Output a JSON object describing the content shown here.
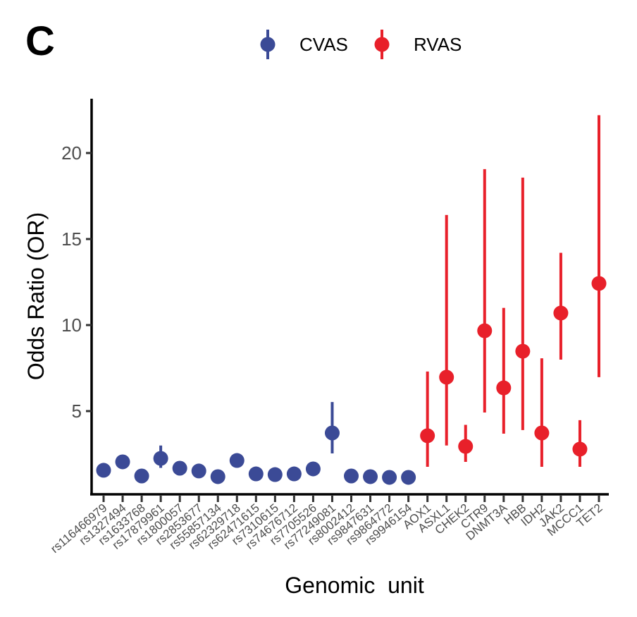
{
  "panel_label": "C",
  "chart_data": {
    "type": "scatter",
    "subtype": "point-range",
    "xlabel": "Genomic  unit",
    "ylabel": "Odds Ratio (OR)",
    "ylim": [
      0,
      23
    ],
    "yticks": [
      5,
      10,
      15,
      20
    ],
    "grid": false,
    "legend_position": "top",
    "categories": [
      "rs116466979",
      "rs1327494",
      "rs1633768",
      "rs17879961",
      "rs1800057",
      "rs2853677",
      "rs55857134",
      "rs62329718",
      "rs62471615",
      "rs7310615",
      "rs74676712",
      "rs7705526",
      "rs77249081",
      "rs8002412",
      "rs9847631",
      "rs9864772",
      "rs9946154",
      "AOX1",
      "ASXL1",
      "CHEK2",
      "CTR9",
      "DNMT3A",
      "HBB",
      "IDH2",
      "JAK2",
      "MCCC1",
      "TET2"
    ],
    "series": [
      {
        "name": "CVAS",
        "color": "#3b4a96",
        "points": [
          {
            "x": "rs116466979",
            "or": 1.56,
            "lo": 1.45,
            "hi": 1.67
          },
          {
            "x": "rs1327494",
            "or": 2.05,
            "lo": 1.9,
            "hi": 2.2
          },
          {
            "x": "rs1633768",
            "or": 1.23,
            "lo": 1.15,
            "hi": 1.31
          },
          {
            "x": "rs17879961",
            "or": 2.25,
            "lo": 1.7,
            "hi": 3.0
          },
          {
            "x": "rs1800057",
            "or": 1.68,
            "lo": 1.55,
            "hi": 1.8
          },
          {
            "x": "rs2853677",
            "or": 1.52,
            "lo": 1.45,
            "hi": 1.6
          },
          {
            "x": "rs55857134",
            "or": 1.19,
            "lo": 1.12,
            "hi": 1.26
          },
          {
            "x": "rs62329718",
            "or": 2.13,
            "lo": 1.95,
            "hi": 2.3
          },
          {
            "x": "rs62471615",
            "or": 1.35,
            "lo": 1.27,
            "hi": 1.43
          },
          {
            "x": "rs7310615",
            "or": 1.31,
            "lo": 1.25,
            "hi": 1.37
          },
          {
            "x": "rs74676712",
            "or": 1.35,
            "lo": 1.27,
            "hi": 1.43
          },
          {
            "x": "rs7705526",
            "or": 1.64,
            "lo": 1.55,
            "hi": 1.73
          },
          {
            "x": "rs77249081",
            "or": 3.73,
            "lo": 2.54,
            "hi": 5.53
          },
          {
            "x": "rs8002412",
            "or": 1.23,
            "lo": 1.16,
            "hi": 1.3
          },
          {
            "x": "rs9847631",
            "or": 1.19,
            "lo": 1.12,
            "hi": 1.26
          },
          {
            "x": "rs9864772",
            "or": 1.15,
            "lo": 1.1,
            "hi": 1.2
          },
          {
            "x": "rs9946154",
            "or": 1.15,
            "lo": 1.1,
            "hi": 1.2
          }
        ]
      },
      {
        "name": "RVAS",
        "color": "#e8202a",
        "points": [
          {
            "x": "AOX1",
            "or": 3.57,
            "lo": 1.76,
            "hi": 7.3
          },
          {
            "x": "ASXL1",
            "or": 6.97,
            "lo": 3.0,
            "hi": 16.4
          },
          {
            "x": "CHEK2",
            "or": 2.95,
            "lo": 2.05,
            "hi": 4.2
          },
          {
            "x": "CTR9",
            "or": 9.67,
            "lo": 4.92,
            "hi": 19.06
          },
          {
            "x": "DNMT3A",
            "or": 6.35,
            "lo": 3.69,
            "hi": 11.0
          },
          {
            "x": "HBB",
            "or": 8.48,
            "lo": 3.9,
            "hi": 18.57
          },
          {
            "x": "IDH2",
            "or": 3.73,
            "lo": 1.76,
            "hi": 8.07
          },
          {
            "x": "JAK2",
            "or": 10.7,
            "lo": 7.99,
            "hi": 14.2
          },
          {
            "x": "MCCC1",
            "or": 2.79,
            "lo": 1.76,
            "hi": 4.47
          },
          {
            "x": "TET2",
            "or": 12.42,
            "lo": 6.97,
            "hi": 22.2
          }
        ]
      }
    ]
  }
}
